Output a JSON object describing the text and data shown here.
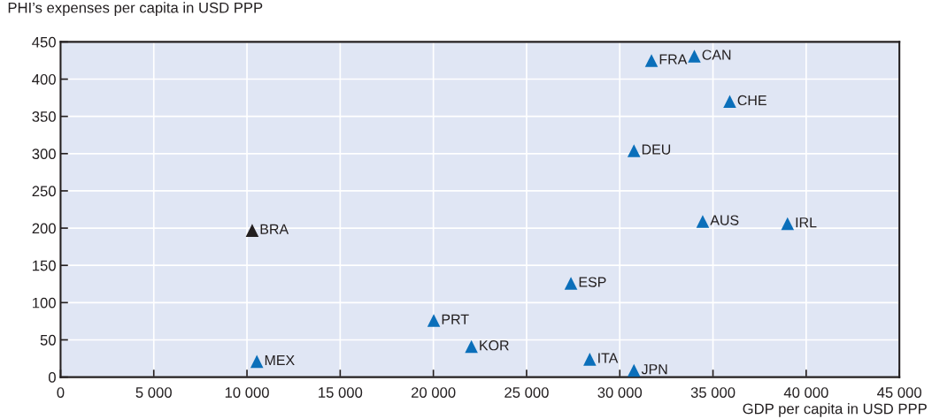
{
  "chart_data": {
    "type": "scatter",
    "xlabel": "GDP per capita in USD PPP",
    "ylabel": "PHI’s expenses per capita in USD PPP",
    "x": [
      10280,
      10530,
      20020,
      22040,
      27380,
      28390,
      30760,
      30760,
      31700,
      34000,
      35900,
      34450,
      39000
    ],
    "values": [
      197,
      21,
      76,
      41,
      126,
      24,
      9,
      304,
      425,
      431,
      370,
      209,
      206
    ],
    "colors": [
      "#231f20",
      "#0b6fba",
      "#0b6fba",
      "#0b6fba",
      "#0b6fba",
      "#0b6fba",
      "#0b6fba",
      "#0b6fba",
      "#0b6fba",
      "#0b6fba",
      "#0b6fba",
      "#0b6fba",
      "#0b6fba"
    ],
    "annotations": [
      {
        "text": "BRA",
        "x": 10280,
        "y": 197
      },
      {
        "text": "MEX",
        "x": 10530,
        "y": 21
      },
      {
        "text": "PRT",
        "x": 20020,
        "y": 76
      },
      {
        "text": "KOR",
        "x": 22040,
        "y": 41
      },
      {
        "text": "ESP",
        "x": 27380,
        "y": 126
      },
      {
        "text": "ITA",
        "x": 28390,
        "y": 24
      },
      {
        "text": "JPN",
        "x": 30760,
        "y": 9
      },
      {
        "text": "DEU",
        "x": 30760,
        "y": 304
      },
      {
        "text": "FRA",
        "x": 31700,
        "y": 425
      },
      {
        "text": "CAN",
        "x": 34000,
        "y": 431
      },
      {
        "text": "CHE",
        "x": 35900,
        "y": 370
      },
      {
        "text": "AUS",
        "x": 34450,
        "y": 209
      },
      {
        "text": "IRL",
        "x": 39000,
        "y": 206
      }
    ],
    "xlim": [
      0,
      45000
    ],
    "xticks": [
      0,
      {
        "value": 5000,
        "label": "5 000"
      },
      {
        "value": 10000,
        "label": "10 000"
      },
      {
        "value": 15000,
        "label": "15 000"
      },
      {
        "value": 20000,
        "label": "20 000"
      },
      {
        "value": 25000,
        "label": "25 000"
      },
      {
        "value": 30000,
        "label": "30 000"
      },
      {
        "value": 35000,
        "label": "35 000"
      },
      {
        "value": 40000,
        "label": "40 000"
      },
      {
        "value": 45000,
        "label": "45 000"
      }
    ],
    "ylim": [
      0,
      450
    ],
    "yticks": [
      0,
      50,
      100,
      150,
      200,
      250,
      300,
      350,
      400,
      450
    ],
    "grid": true,
    "marker": "triangle",
    "legend": false
  }
}
